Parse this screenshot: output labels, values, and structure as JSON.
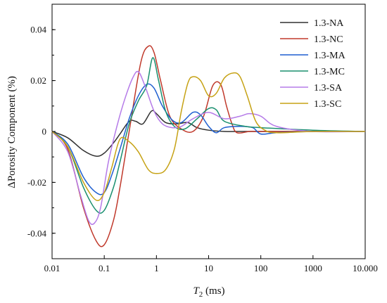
{
  "chart_data": {
    "type": "line",
    "xlabel_main": "T",
    "xlabel_sub": "2",
    "xlabel_unit": " (ms)",
    "ylabel": "ΔPorosity Component (%)",
    "x_scale": "log",
    "xlim": [
      0.01,
      10000
    ],
    "ylim": [
      -0.05,
      0.05
    ],
    "x_ticks": [
      0.01,
      0.1,
      1,
      10,
      100,
      1000,
      10000
    ],
    "x_tick_labels": [
      "0.01",
      "0.1",
      "1",
      "10",
      "100",
      "1000",
      "10.000"
    ],
    "y_ticks": [
      -0.04,
      -0.02,
      0,
      0.02,
      0.04
    ],
    "y_tick_labels": [
      "-0.04",
      "-0.02",
      "0",
      "0.02",
      "0.04"
    ],
    "grid": false,
    "legend_position": "top-right",
    "series": [
      {
        "name": "1.3-NA",
        "color": "#303030",
        "x": [
          0.01,
          0.02,
          0.04,
          0.07,
          0.1,
          0.15,
          0.2,
          0.3,
          0.4,
          0.55,
          0.8,
          1.0,
          1.5,
          2.5,
          4,
          6,
          10,
          20,
          50,
          100,
          1000,
          10000
        ],
        "y": [
          0,
          -0.0025,
          -0.0075,
          -0.0097,
          -0.0085,
          -0.0045,
          -0.001,
          0.004,
          0.004,
          0.003,
          0.008,
          0.007,
          0.0035,
          0.003,
          0.0035,
          0.0015,
          0.0005,
          0.0,
          0.0,
          0.0,
          0.0,
          0.0
        ]
      },
      {
        "name": "1.3-NC",
        "color": "#C0392B",
        "x": [
          0.01,
          0.02,
          0.04,
          0.07,
          0.1,
          0.15,
          0.2,
          0.3,
          0.5,
          0.7,
          0.9,
          1.2,
          1.8,
          3,
          5,
          8,
          12,
          17,
          22,
          28,
          35,
          60,
          100,
          1000,
          10000
        ],
        "y": [
          0,
          -0.007,
          -0.03,
          -0.043,
          -0.0445,
          -0.035,
          -0.022,
          0.0,
          0.027,
          0.0335,
          0.031,
          0.02,
          0.006,
          0.001,
          0.0,
          0.006,
          0.018,
          0.0185,
          0.01,
          0.003,
          -0.0005,
          0.0,
          0.0,
          0.0,
          0.0
        ]
      },
      {
        "name": "1.3-MA",
        "color": "#1F5FD0",
        "x": [
          0.01,
          0.02,
          0.04,
          0.07,
          0.1,
          0.14,
          0.2,
          0.3,
          0.45,
          0.65,
          0.9,
          1.3,
          2,
          3,
          5,
          7,
          10,
          14,
          20,
          40,
          70,
          100,
          200,
          1000,
          10000
        ],
        "y": [
          0,
          -0.005,
          -0.018,
          -0.024,
          -0.024,
          -0.017,
          -0.007,
          0.005,
          0.014,
          0.0185,
          0.017,
          0.01,
          0.0045,
          0.0035,
          0.0075,
          0.0065,
          0.002,
          -0.0005,
          0.0015,
          0.002,
          0.0015,
          -0.001,
          -0.0005,
          0.0,
          0.0
        ]
      },
      {
        "name": "1.3-MC",
        "color": "#1A8F6F",
        "x": [
          0.01,
          0.02,
          0.04,
          0.07,
          0.1,
          0.15,
          0.2,
          0.3,
          0.45,
          0.65,
          0.85,
          1.1,
          1.5,
          2.2,
          3.5,
          6,
          10,
          14,
          20,
          50,
          100,
          1000,
          10000
        ],
        "y": [
          0,
          -0.006,
          -0.022,
          -0.031,
          -0.031,
          -0.022,
          -0.012,
          0.003,
          0.012,
          0.018,
          0.029,
          0.02,
          0.008,
          0.002,
          0.001,
          0.005,
          0.009,
          0.0085,
          0.004,
          0.002,
          0.0015,
          0.0005,
          0.0
        ]
      },
      {
        "name": "1.3-SA",
        "color": "#B57BE8",
        "x": [
          0.01,
          0.02,
          0.035,
          0.05,
          0.065,
          0.085,
          0.12,
          0.18,
          0.25,
          0.35,
          0.45,
          0.6,
          0.9,
          1.3,
          2,
          3,
          5,
          10,
          20,
          40,
          60,
          100,
          200,
          1000,
          10000
        ],
        "y": [
          0,
          -0.008,
          -0.025,
          -0.035,
          -0.036,
          -0.03,
          -0.012,
          0.003,
          0.013,
          0.021,
          0.0235,
          0.018,
          0.008,
          0.003,
          0.0015,
          0.002,
          0.005,
          0.0075,
          0.005,
          0.006,
          0.007,
          0.006,
          0.002,
          0.0,
          0.0
        ]
      },
      {
        "name": "1.3-SC",
        "color": "#C6A215",
        "x": [
          0.01,
          0.02,
          0.04,
          0.07,
          0.1,
          0.14,
          0.2,
          0.3,
          0.45,
          0.7,
          1.0,
          1.5,
          2.2,
          3,
          4,
          5,
          7,
          10,
          14,
          20,
          30,
          40,
          55,
          80,
          120,
          200,
          1000,
          10000
        ],
        "y": [
          0,
          -0.006,
          -0.02,
          -0.027,
          -0.024,
          -0.014,
          -0.003,
          -0.004,
          -0.008,
          -0.015,
          -0.0165,
          -0.015,
          -0.007,
          0.008,
          0.019,
          0.0215,
          0.02,
          0.014,
          0.015,
          0.021,
          0.023,
          0.0215,
          0.014,
          0.004,
          0.0005,
          -0.0005,
          0.0,
          0.0
        ]
      }
    ]
  }
}
